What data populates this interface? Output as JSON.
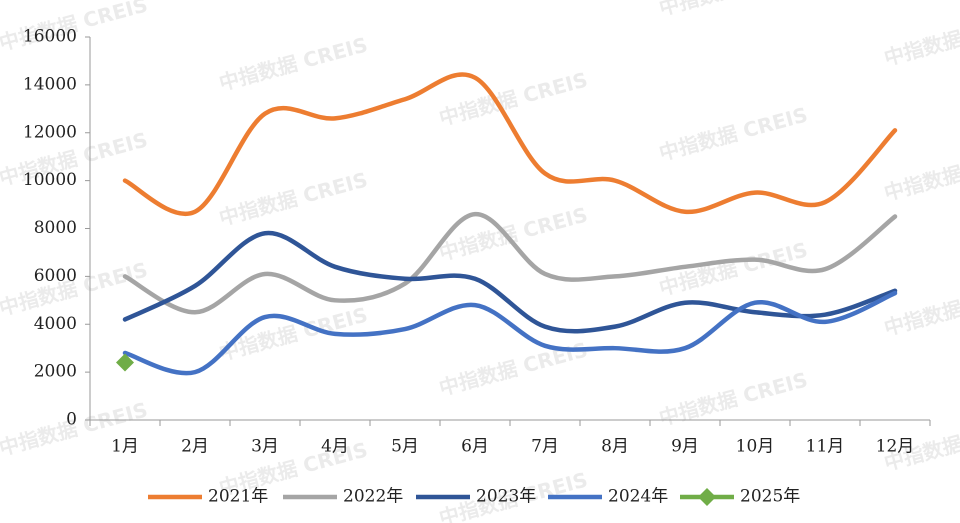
{
  "chart_data": {
    "type": "line",
    "watermark": "中指数据 CREIS",
    "categories": [
      "1月",
      "2月",
      "3月",
      "4月",
      "5月",
      "6月",
      "7月",
      "8月",
      "9月",
      "10月",
      "11月",
      "12月"
    ],
    "ylim": [
      0,
      16000
    ],
    "yticks": [
      0,
      2000,
      4000,
      6000,
      8000,
      10000,
      12000,
      14000,
      16000
    ],
    "legend": "bottom",
    "series": [
      {
        "name": "2021年",
        "color": "#ed7d31",
        "values": [
          10000,
          8700,
          12800,
          12600,
          13400,
          14300,
          10300,
          10000,
          8700,
          9500,
          9100,
          12100
        ]
      },
      {
        "name": "2022年",
        "color": "#a5a5a5",
        "values": [
          6000,
          4500,
          6100,
          5000,
          5700,
          8600,
          6100,
          6000,
          6400,
          6700,
          6300,
          8500
        ]
      },
      {
        "name": "2023年",
        "color": "#2f5597",
        "values": [
          4200,
          5600,
          7800,
          6400,
          5900,
          5900,
          3900,
          3900,
          4900,
          4500,
          4400,
          5400
        ]
      },
      {
        "name": "2024年",
        "color": "#4472c4",
        "values": [
          2800,
          2000,
          4300,
          3600,
          3800,
          4800,
          3100,
          3000,
          3000,
          4900,
          4100,
          5300
        ]
      },
      {
        "name": "2025年",
        "color": "#70ad47",
        "marker": "diamond",
        "values": [
          2400,
          null,
          null,
          null,
          null,
          null,
          null,
          null,
          null,
          null,
          null,
          null
        ]
      }
    ]
  }
}
